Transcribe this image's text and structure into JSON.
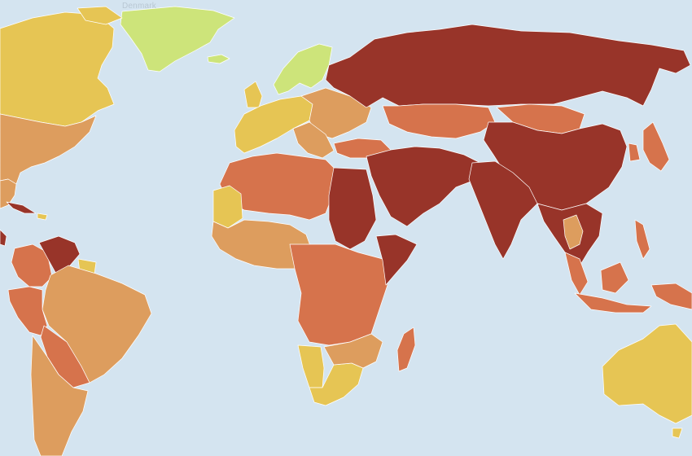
{
  "map": {
    "tooltip_label": "Denmark",
    "ocean_color": "#d4e4f0",
    "border_color": "#ffffff"
  },
  "legend_colors": {
    "good": "#cde47a",
    "satisfactory": "#e6c554",
    "problematic": "#dd9d5e",
    "difficult": "#d6734c",
    "very_serious": "#983429"
  },
  "regions": [
    {
      "name": "greenland",
      "category": "good"
    },
    {
      "name": "canada",
      "category": "satisfactory"
    },
    {
      "name": "united-states",
      "category": "problematic"
    },
    {
      "name": "cuba",
      "category": "very_serious"
    },
    {
      "name": "venezuela",
      "category": "very_serious"
    },
    {
      "name": "colombia",
      "category": "difficult"
    },
    {
      "name": "brazil",
      "category": "problematic"
    },
    {
      "name": "peru",
      "category": "difficult"
    },
    {
      "name": "bolivia",
      "category": "difficult"
    },
    {
      "name": "chile-argentina",
      "category": "problematic"
    },
    {
      "name": "scandinavia",
      "category": "good"
    },
    {
      "name": "western-europe",
      "category": "satisfactory"
    },
    {
      "name": "eastern-europe",
      "category": "problematic"
    },
    {
      "name": "russia",
      "category": "very_serious"
    },
    {
      "name": "central-asia",
      "category": "difficult"
    },
    {
      "name": "china",
      "category": "very_serious"
    },
    {
      "name": "mongolia",
      "category": "difficult"
    },
    {
      "name": "india",
      "category": "very_serious"
    },
    {
      "name": "middle-east",
      "category": "very_serious"
    },
    {
      "name": "north-africa",
      "category": "difficult"
    },
    {
      "name": "egypt-sudan",
      "category": "very_serious"
    },
    {
      "name": "mauritania",
      "category": "satisfactory"
    },
    {
      "name": "west-africa",
      "category": "problematic"
    },
    {
      "name": "central-africa",
      "category": "difficult"
    },
    {
      "name": "horn-of-africa",
      "category": "very_serious"
    },
    {
      "name": "namibia",
      "category": "satisfactory"
    },
    {
      "name": "southern-africa",
      "category": "satisfactory"
    },
    {
      "name": "madagascar",
      "category": "difficult"
    },
    {
      "name": "southeast-asia",
      "category": "very_serious"
    },
    {
      "name": "thailand",
      "category": "problematic"
    },
    {
      "name": "indonesia",
      "category": "difficult"
    },
    {
      "name": "japan",
      "category": "difficult"
    },
    {
      "name": "australia",
      "category": "satisfactory"
    }
  ]
}
